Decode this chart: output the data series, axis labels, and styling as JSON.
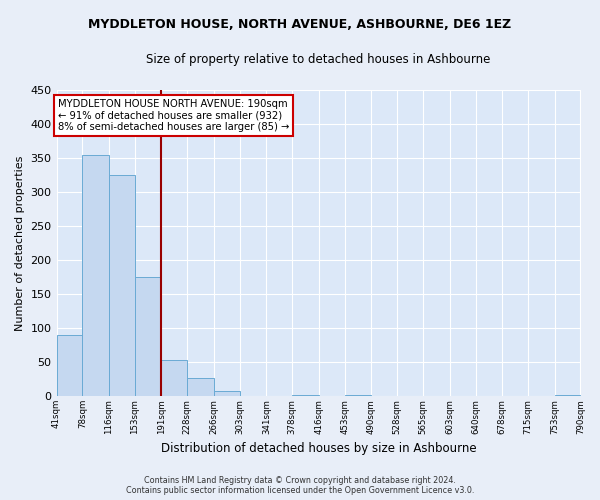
{
  "title": "MYDDLETON HOUSE, NORTH AVENUE, ASHBOURNE, DE6 1EZ",
  "subtitle": "Size of property relative to detached houses in Ashbourne",
  "xlabel": "Distribution of detached houses by size in Ashbourne",
  "ylabel": "Number of detached properties",
  "bar_edges": [
    41,
    78,
    116,
    153,
    191,
    228,
    266,
    303,
    341,
    378,
    416,
    453,
    490,
    528,
    565,
    603,
    640,
    678,
    715,
    753,
    790
  ],
  "bar_heights": [
    90,
    355,
    325,
    175,
    53,
    26,
    8,
    0,
    0,
    2,
    0,
    2,
    0,
    0,
    0,
    0,
    0,
    0,
    0,
    2
  ],
  "bar_color": "#c5d8f0",
  "bar_edge_color": "#6aaad4",
  "property_line_x": 191,
  "property_line_color": "#990000",
  "annotation_line1": "MYDDLETON HOUSE NORTH AVENUE: 190sqm",
  "annotation_line2": "← 91% of detached houses are smaller (932)",
  "annotation_line3": "8% of semi-detached houses are larger (85) →",
  "ylim": [
    0,
    450
  ],
  "yticks": [
    0,
    50,
    100,
    150,
    200,
    250,
    300,
    350,
    400,
    450
  ],
  "xtick_labels": [
    "41sqm",
    "78sqm",
    "116sqm",
    "153sqm",
    "191sqm",
    "228sqm",
    "266sqm",
    "303sqm",
    "341sqm",
    "378sqm",
    "416sqm",
    "453sqm",
    "490sqm",
    "528sqm",
    "565sqm",
    "603sqm",
    "640sqm",
    "678sqm",
    "715sqm",
    "753sqm",
    "790sqm"
  ],
  "fig_bg_color": "#e8eef8",
  "ax_bg_color": "#dce8f8",
  "grid_color": "#ffffff",
  "footer_line1": "Contains HM Land Registry data © Crown copyright and database right 2024.",
  "footer_line2": "Contains public sector information licensed under the Open Government Licence v3.0."
}
